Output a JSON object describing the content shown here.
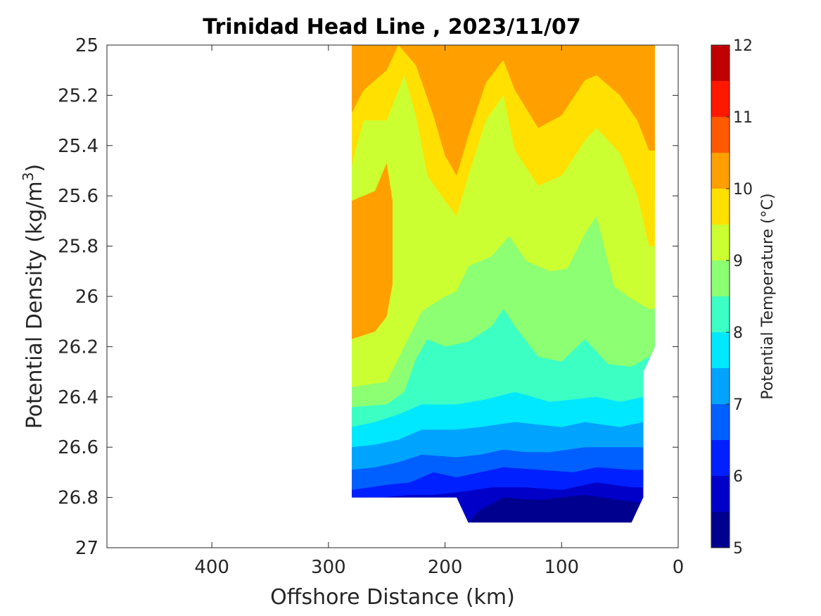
{
  "chart_data": {
    "type": "contourf",
    "title": "Trinidad Head Line , 2023/11/07",
    "xlabel": "Offshore Distance (km)",
    "ylabel": "Potential Density (kg/m3)",
    "ylabel_main": "Potential Density (kg/m",
    "ylabel_sup": "3",
    "ylabel_end": ")",
    "x_reversed": true,
    "y_reversed": true,
    "xlim": [
      0,
      490
    ],
    "ylim": [
      25,
      27
    ],
    "xticks": [
      0,
      100,
      200,
      300,
      400
    ],
    "xtick_labels": [
      "0",
      "100",
      "200",
      "300",
      "400"
    ],
    "yticks": [
      25,
      25.2,
      25.4,
      25.6,
      25.8,
      26,
      26.2,
      26.4,
      26.6,
      26.8,
      27
    ],
    "ytick_labels": [
      "25",
      "25.2",
      "25.4",
      "25.6",
      "25.8",
      "26",
      "26.2",
      "26.4",
      "26.6",
      "26.8",
      "27"
    ],
    "colorbar": {
      "label": "Potential Temperature (°C)",
      "range": [
        5,
        12
      ],
      "levels": [
        5,
        5.5,
        6,
        6.5,
        7,
        7.5,
        8,
        8.5,
        9,
        9.5,
        10,
        10.5,
        11,
        11.5,
        12
      ],
      "ticks": [
        5,
        6,
        7,
        8,
        9,
        10,
        11,
        12
      ],
      "tick_labels": [
        "5",
        "6",
        "7",
        "8",
        "9",
        "10",
        "11",
        "12"
      ],
      "colors": [
        "#00008f",
        "#0000c8",
        "#0020ff",
        "#0060ff",
        "#00a4ff",
        "#00e8ff",
        "#3cffc4",
        "#8cff72",
        "#ccff32",
        "#ffe000",
        "#ffa000",
        "#ff5a00",
        "#ff1800",
        "#c00000"
      ]
    },
    "data_region": {
      "x_min": 20,
      "x_max": 280,
      "outline": [
        [
          280,
          25
        ],
        [
          20,
          25
        ],
        [
          20,
          26.2
        ],
        [
          30,
          26.3
        ],
        [
          30,
          26.8
        ],
        [
          40,
          26.9
        ],
        [
          180,
          26.9
        ],
        [
          190,
          26.8
        ],
        [
          280,
          26.8
        ]
      ]
    },
    "isotherms": [
      {
        "level": 5.5,
        "points": [
          [
            180,
            26.9
          ],
          [
            170,
            26.85
          ],
          [
            150,
            26.8
          ],
          [
            120,
            26.81
          ],
          [
            80,
            26.79
          ],
          [
            50,
            26.81
          ],
          [
            35,
            26.82
          ]
        ]
      },
      {
        "level": 6,
        "points": [
          [
            255,
            26.8
          ],
          [
            230,
            26.79
          ],
          [
            210,
            26.79
          ],
          [
            190,
            26.78
          ],
          [
            160,
            26.76
          ],
          [
            130,
            26.76
          ],
          [
            100,
            26.77
          ],
          [
            70,
            26.74
          ],
          [
            40,
            26.76
          ],
          [
            30,
            26.76
          ]
        ]
      },
      {
        "level": 6.5,
        "points": [
          [
            280,
            26.77
          ],
          [
            250,
            26.75
          ],
          [
            230,
            26.74
          ],
          [
            210,
            26.7
          ],
          [
            190,
            26.72
          ],
          [
            170,
            26.7
          ],
          [
            150,
            26.68
          ],
          [
            120,
            26.69
          ],
          [
            90,
            26.7
          ],
          [
            70,
            26.68
          ],
          [
            40,
            26.69
          ],
          [
            30,
            26.69
          ]
        ]
      },
      {
        "level": 7,
        "points": [
          [
            280,
            26.69
          ],
          [
            260,
            26.68
          ],
          [
            240,
            26.66
          ],
          [
            220,
            26.63
          ],
          [
            190,
            26.64
          ],
          [
            170,
            26.63
          ],
          [
            150,
            26.61
          ],
          [
            130,
            26.62
          ],
          [
            110,
            26.62
          ],
          [
            80,
            26.6
          ],
          [
            50,
            26.6
          ],
          [
            30,
            26.6
          ]
        ]
      },
      {
        "level": 7.5,
        "points": [
          [
            280,
            26.6
          ],
          [
            260,
            26.59
          ],
          [
            240,
            26.57
          ],
          [
            220,
            26.53
          ],
          [
            190,
            26.53
          ],
          [
            170,
            26.52
          ],
          [
            140,
            26.5
          ],
          [
            120,
            26.51
          ],
          [
            100,
            26.52
          ],
          [
            80,
            26.5
          ],
          [
            50,
            26.52
          ],
          [
            30,
            26.5
          ]
        ]
      },
      {
        "level": 8,
        "points": [
          [
            280,
            26.52
          ],
          [
            260,
            26.5
          ],
          [
            240,
            26.47
          ],
          [
            220,
            26.43
          ],
          [
            190,
            26.43
          ],
          [
            165,
            26.41
          ],
          [
            140,
            26.38
          ],
          [
            110,
            26.42
          ],
          [
            90,
            26.41
          ],
          [
            70,
            26.4
          ],
          [
            50,
            26.42
          ],
          [
            30,
            26.4
          ]
        ]
      },
      {
        "level": 8.5,
        "points": [
          [
            280,
            26.44
          ],
          [
            250,
            26.43
          ],
          [
            235,
            26.38
          ],
          [
            225,
            26.25
          ],
          [
            215,
            26.17
          ],
          [
            200,
            26.2
          ],
          [
            180,
            26.18
          ],
          [
            160,
            26.12
          ],
          [
            150,
            26.05
          ],
          [
            140,
            26.12
          ],
          [
            120,
            26.24
          ],
          [
            100,
            26.26
          ],
          [
            80,
            26.17
          ],
          [
            60,
            26.27
          ],
          [
            40,
            26.28
          ],
          [
            25,
            26.24
          ]
        ]
      },
      {
        "level": 9,
        "points": [
          [
            280,
            26.36
          ],
          [
            250,
            26.34
          ],
          [
            235,
            26.2
          ],
          [
            220,
            26.06
          ],
          [
            200,
            26.0
          ],
          [
            190,
            25.98
          ],
          [
            180,
            25.88
          ],
          [
            160,
            25.84
          ],
          [
            145,
            25.76
          ],
          [
            130,
            25.86
          ],
          [
            110,
            25.9
          ],
          [
            95,
            25.89
          ],
          [
            80,
            25.75
          ],
          [
            70,
            25.68
          ],
          [
            55,
            25.96
          ],
          [
            40,
            26.01
          ],
          [
            25,
            26.05
          ]
        ]
      },
      {
        "level": 9.5,
        "points": [
          [
            280,
            25.48
          ],
          [
            270,
            25.3
          ],
          [
            250,
            25.3
          ],
          [
            235,
            25.12
          ],
          [
            225,
            25.28
          ],
          [
            215,
            25.52
          ],
          [
            200,
            25.62
          ],
          [
            190,
            25.68
          ],
          [
            180,
            25.52
          ],
          [
            165,
            25.3
          ],
          [
            150,
            25.2
          ],
          [
            140,
            25.42
          ],
          [
            120,
            25.56
          ],
          [
            100,
            25.52
          ],
          [
            80,
            25.38
          ],
          [
            70,
            25.33
          ],
          [
            50,
            25.43
          ],
          [
            35,
            25.6
          ],
          [
            25,
            25.8
          ]
        ]
      },
      {
        "level": 10,
        "points": [
          [
            280,
            25.27
          ],
          [
            270,
            25.18
          ],
          [
            250,
            25.1
          ],
          [
            240,
            25.0
          ],
          [
            225,
            25.08
          ],
          [
            210,
            25.28
          ],
          [
            200,
            25.44
          ],
          [
            190,
            25.52
          ],
          [
            180,
            25.36
          ],
          [
            165,
            25.15
          ],
          [
            150,
            25.06
          ],
          [
            140,
            25.18
          ],
          [
            120,
            25.33
          ],
          [
            100,
            25.28
          ],
          [
            80,
            25.14
          ],
          [
            70,
            25.12
          ],
          [
            50,
            25.2
          ],
          [
            35,
            25.3
          ],
          [
            25,
            25.42
          ]
        ]
      }
    ],
    "warm_core": {
      "level": 10,
      "points": [
        [
          280,
          25.62
        ],
        [
          260,
          25.58
        ],
        [
          250,
          25.47
        ],
        [
          245,
          25.62
        ],
        [
          245,
          25.95
        ],
        [
          250,
          26.08
        ],
        [
          260,
          26.14
        ],
        [
          280,
          26.17
        ]
      ]
    }
  }
}
